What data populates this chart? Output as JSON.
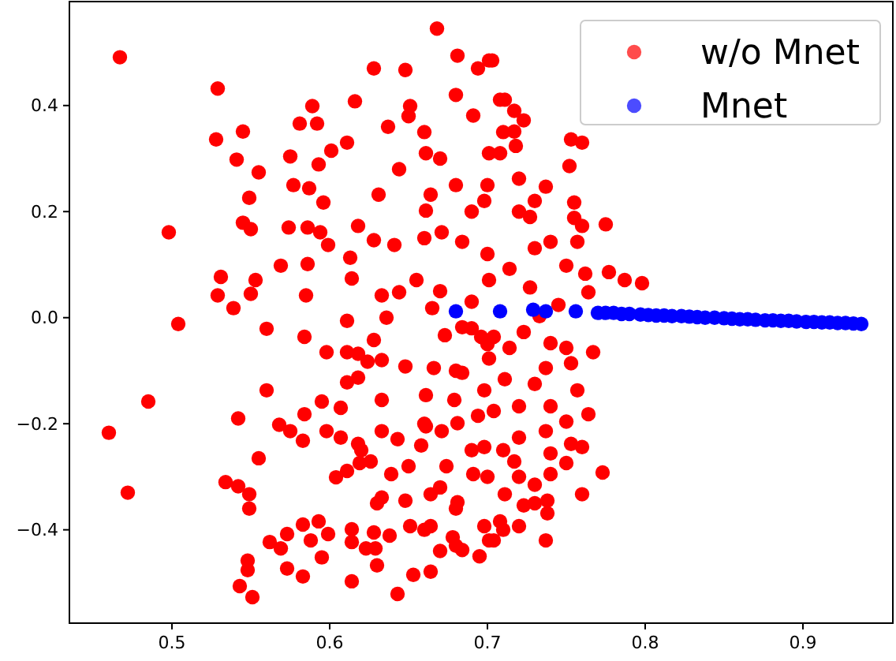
{
  "chart_data": {
    "type": "scatter",
    "xlim": [
      0.435,
      0.957
    ],
    "ylim": [
      -0.576,
      0.596
    ],
    "xticks": [
      0.5,
      0.6,
      0.7,
      0.8,
      0.9
    ],
    "yticks": [
      {
        "value": -0.4,
        "label": "−0.4"
      },
      {
        "value": -0.2,
        "label": "−0.2"
      },
      {
        "value": 0,
        "label": "0.0"
      },
      0.2,
      0.4
    ],
    "legend": "top right",
    "marker": "circle",
    "grid": false,
    "series": [
      {
        "name": "w/o Mnet",
        "color": "#ff0000",
        "x": [
          0.467,
          0.529,
          0.528,
          0.545,
          0.541,
          0.555,
          0.549,
          0.545,
          0.55,
          0.498,
          0.531,
          0.529,
          0.539,
          0.55,
          0.553,
          0.569,
          0.504,
          0.575,
          0.577,
          0.587,
          0.589,
          0.581,
          0.592,
          0.593,
          0.574,
          0.586,
          0.586,
          0.585,
          0.594,
          0.599,
          0.601,
          0.596,
          0.611,
          0.616,
          0.628,
          0.668,
          0.681,
          0.648,
          0.613,
          0.614,
          0.611,
          0.633,
          0.644,
          0.636,
          0.655,
          0.665,
          0.618,
          0.628,
          0.641,
          0.631,
          0.644,
          0.637,
          0.651,
          0.661,
          0.664,
          0.661,
          0.671,
          0.684,
          0.698,
          0.701,
          0.691,
          0.701,
          0.708,
          0.485,
          0.46,
          0.472,
          0.542,
          0.555,
          0.56,
          0.56,
          0.584,
          0.534,
          0.542,
          0.549,
          0.549,
          0.548,
          0.548,
          0.543,
          0.551,
          0.562,
          0.569,
          0.573,
          0.573,
          0.568,
          0.575,
          0.583,
          0.584,
          0.595,
          0.598,
          0.607,
          0.598,
          0.607,
          0.611,
          0.611,
          0.618,
          0.618,
          0.624,
          0.633,
          0.628,
          0.618,
          0.604,
          0.611,
          0.619,
          0.626,
          0.583,
          0.593,
          0.588,
          0.599,
          0.595,
          0.583,
          0.614,
          0.614,
          0.614,
          0.623,
          0.629,
          0.628,
          0.638,
          0.63,
          0.643,
          0.653,
          0.664,
          0.633,
          0.639,
          0.633,
          0.633,
          0.643,
          0.658,
          0.648,
          0.666,
          0.661,
          0.661,
          0.671,
          0.674,
          0.684,
          0.679,
          0.681,
          0.684,
          0.678,
          0.701,
          0.664,
          0.651,
          0.648,
          0.664,
          0.681,
          0.691,
          0.698,
          0.694,
          0.698,
          0.701,
          0.696,
          0.684,
          0.673,
          0.711,
          0.717,
          0.723,
          0.717,
          0.718,
          0.708,
          0.72,
          0.737,
          0.753,
          0.76,
          0.752,
          0.755,
          0.755,
          0.76,
          0.775,
          0.757,
          0.74,
          0.727,
          0.73,
          0.75,
          0.762,
          0.777,
          0.787,
          0.798,
          0.764,
          0.745,
          0.727,
          0.714,
          0.701,
          0.733,
          0.723,
          0.74,
          0.75,
          0.767,
          0.753,
          0.737,
          0.714,
          0.704,
          0.711,
          0.73,
          0.757,
          0.74,
          0.72,
          0.704,
          0.764,
          0.75,
          0.737,
          0.72,
          0.753,
          0.76,
          0.74,
          0.717,
          0.75,
          0.773,
          0.74,
          0.73,
          0.76,
          0.711,
          0.738,
          0.738,
          0.723,
          0.72,
          0.704,
          0.737,
          0.708,
          0.698,
          0.694,
          0.703,
          0.66,
          0.67,
          0.68,
          0.69,
          0.66,
          0.7,
          0.67,
          0.69,
          0.7,
          0.68,
          0.65,
          0.71,
          0.72,
          0.73,
          0.69,
          0.7,
          0.68,
          0.66,
          0.69,
          0.7,
          0.67,
          0.68,
          0.71,
          0.72,
          0.71,
          0.67,
          0.695,
          0.73,
          0.65,
          0.63,
          0.66,
          0.62,
          0.68
        ],
        "values": [
          0.491,
          0.432,
          0.336,
          0.351,
          0.298,
          0.274,
          0.226,
          0.179,
          0.167,
          0.161,
          0.077,
          0.042,
          0.018,
          0.045,
          0.071,
          0.098,
          -0.012,
          0.304,
          0.25,
          0.244,
          0.399,
          0.366,
          0.366,
          0.289,
          0.17,
          0.17,
          0.101,
          0.042,
          0.161,
          0.137,
          0.315,
          0.217,
          0.33,
          0.408,
          0.47,
          0.545,
          0.494,
          0.467,
          0.113,
          0.074,
          -0.006,
          0.042,
          0.048,
          0,
          0.071,
          0.018,
          0.173,
          0.146,
          0.137,
          0.232,
          0.28,
          0.36,
          0.399,
          0.31,
          0.232,
          0.202,
          0.161,
          0.143,
          0.22,
          0.31,
          0.381,
          0.485,
          0.411,
          -0.158,
          -0.217,
          -0.33,
          -0.19,
          -0.265,
          -0.137,
          -0.021,
          -0.036,
          -0.31,
          -0.318,
          -0.333,
          -0.36,
          -0.458,
          -0.476,
          -0.506,
          -0.527,
          -0.423,
          -0.435,
          -0.408,
          -0.473,
          -0.202,
          -0.214,
          -0.232,
          -0.182,
          -0.158,
          -0.065,
          -0.17,
          -0.214,
          -0.226,
          -0.065,
          -0.122,
          -0.113,
          -0.068,
          -0.083,
          -0.08,
          -0.042,
          -0.238,
          -0.301,
          -0.289,
          -0.274,
          -0.271,
          -0.39,
          -0.384,
          -0.42,
          -0.408,
          -0.452,
          -0.488,
          -0.497,
          -0.399,
          -0.423,
          -0.435,
          -0.435,
          -0.405,
          -0.411,
          -0.467,
          -0.521,
          -0.485,
          -0.479,
          -0.339,
          -0.295,
          -0.214,
          -0.155,
          -0.229,
          -0.241,
          -0.092,
          -0.095,
          -0.146,
          -0.205,
          -0.214,
          -0.28,
          -0.104,
          -0.155,
          -0.199,
          -0.438,
          -0.414,
          -0.42,
          -0.393,
          -0.393,
          -0.345,
          -0.333,
          -0.348,
          -0.295,
          -0.244,
          -0.185,
          -0.137,
          -0.077,
          -0.036,
          -0.018,
          -0.033,
          0.411,
          0.39,
          0.372,
          0.351,
          0.324,
          0.31,
          0.262,
          0.247,
          0.336,
          0.33,
          0.286,
          0.217,
          0.188,
          0.173,
          0.176,
          0.143,
          0.143,
          0.19,
          0.131,
          0.098,
          0.083,
          0.086,
          0.071,
          0.065,
          0.048,
          0.024,
          0.057,
          0.092,
          0.071,
          0.003,
          -0.027,
          -0.048,
          -0.057,
          -0.065,
          -0.086,
          -0.095,
          -0.057,
          -0.036,
          -0.116,
          -0.125,
          -0.137,
          -0.167,
          -0.167,
          -0.176,
          -0.182,
          -0.196,
          -0.214,
          -0.226,
          -0.238,
          -0.244,
          -0.256,
          -0.271,
          -0.274,
          -0.292,
          -0.295,
          -0.315,
          -0.333,
          -0.333,
          -0.345,
          -0.369,
          -0.354,
          -0.393,
          -0.42,
          -0.42,
          -0.384,
          -0.393,
          0.47,
          0.485,
          0.35,
          0.3,
          0.25,
          0.2,
          0.15,
          0.12,
          0.05,
          0.03,
          0.25,
          0.42,
          0.38,
          0.35,
          0.2,
          0.22,
          -0.02,
          -0.05,
          -0.1,
          -0.2,
          -0.25,
          -0.3,
          -0.32,
          -0.36,
          -0.25,
          -0.3,
          -0.4,
          -0.44,
          -0.45,
          -0.35,
          -0.28,
          -0.35,
          -0.4,
          -0.25,
          -0.43
        ]
      },
      {
        "name": "Mnet",
        "color": "#0000ff",
        "x": [
          0.68,
          0.708,
          0.729,
          0.737,
          0.756,
          0.77,
          0.775,
          0.78,
          0.785,
          0.79,
          0.797,
          0.802,
          0.807,
          0.812,
          0.817,
          0.823,
          0.828,
          0.833,
          0.838,
          0.844,
          0.85,
          0.855,
          0.86,
          0.865,
          0.87,
          0.876,
          0.881,
          0.886,
          0.891,
          0.896,
          0.902,
          0.907,
          0.912,
          0.917,
          0.922,
          0.927,
          0.932,
          0.937
        ],
        "values": [
          0.012,
          0.012,
          0.015,
          0.012,
          0.012,
          0.009,
          0.009,
          0.009,
          0.007,
          0.007,
          0.006,
          0.005,
          0.004,
          0.004,
          0.003,
          0.003,
          0.002,
          0.001,
          0.0,
          0.0,
          -0.001,
          -0.002,
          -0.003,
          -0.003,
          -0.004,
          -0.005,
          -0.005,
          -0.006,
          -0.006,
          -0.007,
          -0.008,
          -0.008,
          -0.009,
          -0.009,
          -0.01,
          -0.01,
          -0.011,
          -0.012
        ]
      }
    ]
  }
}
